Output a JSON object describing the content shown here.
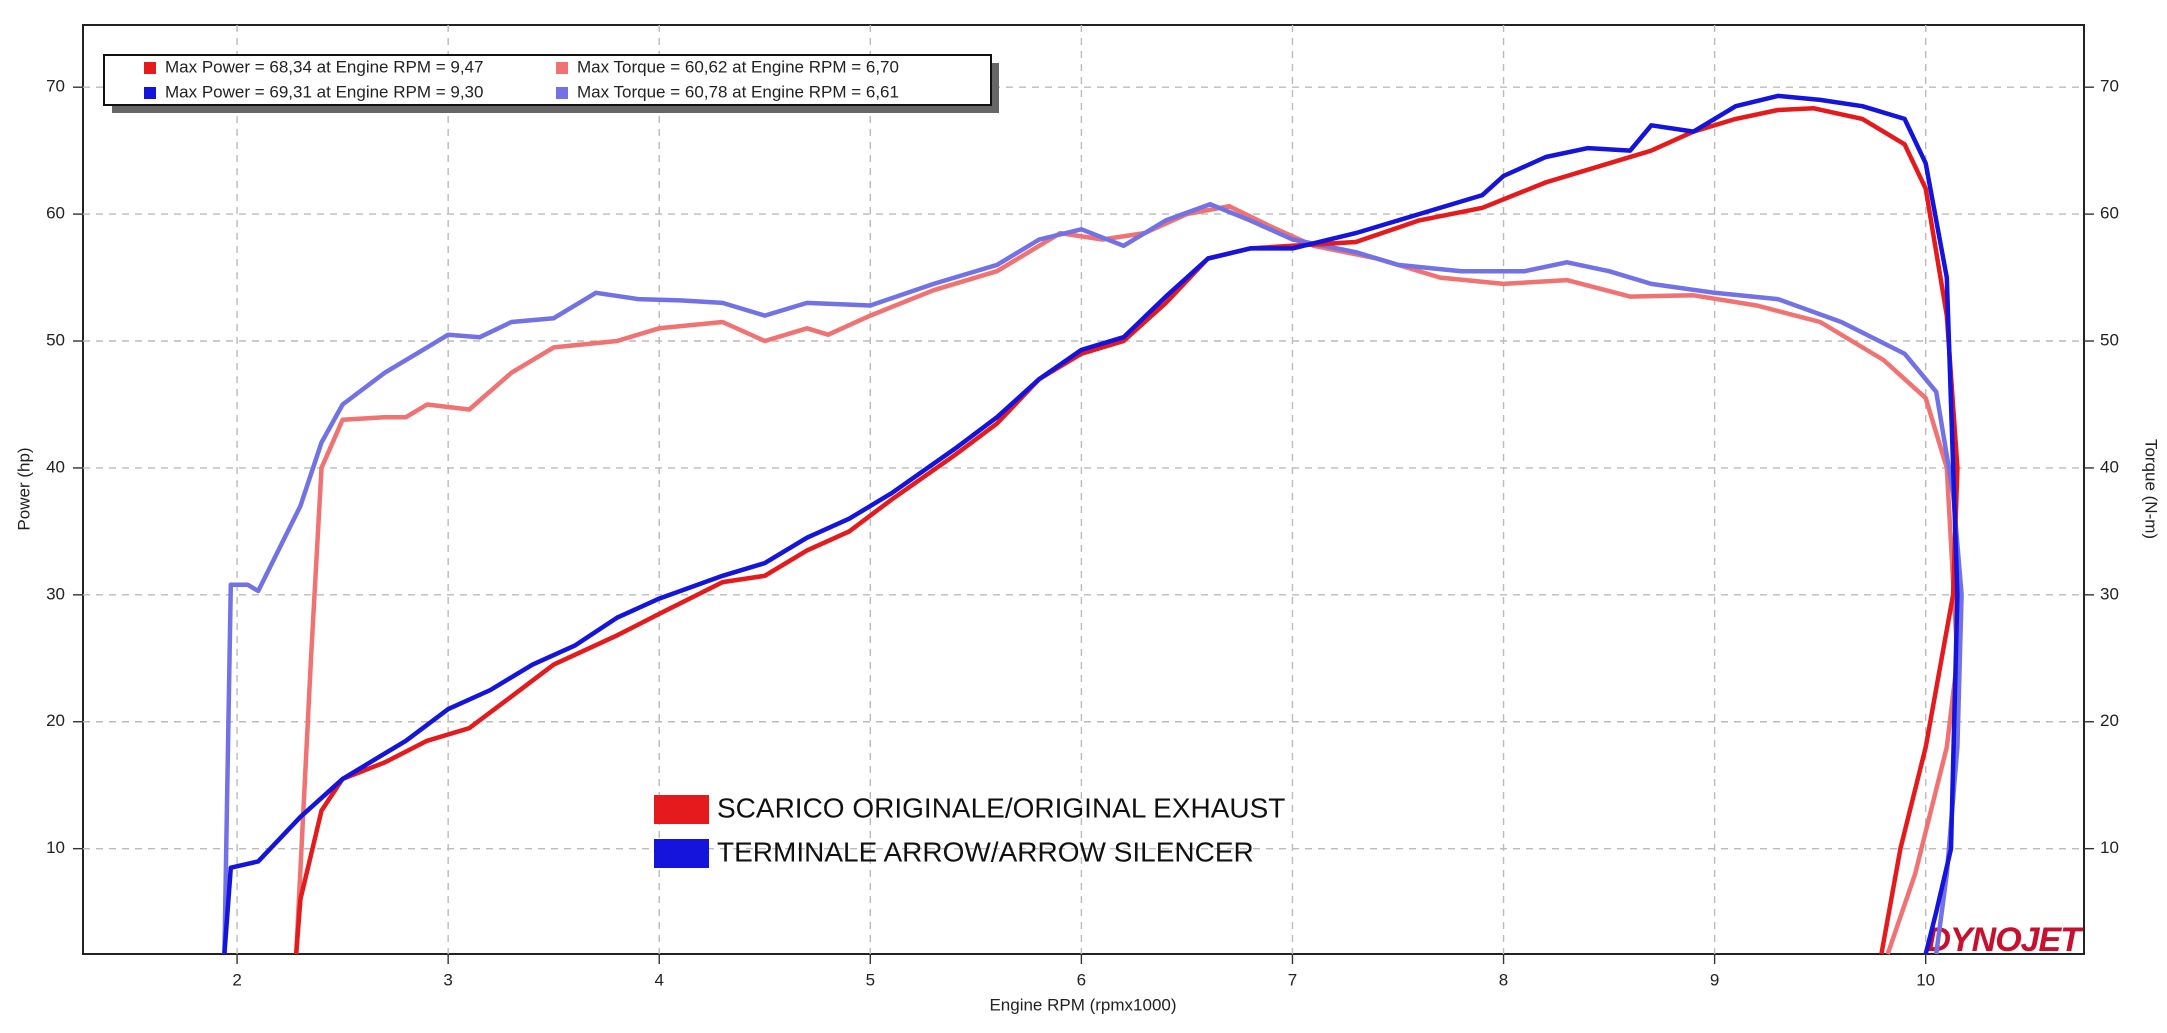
{
  "chart_data": {
    "type": "line",
    "xlabel": "Engine RPM (rpmx1000)",
    "ylabel": "Power (hp)",
    "y2label": "Torque (N-m)",
    "xlim": [
      1.27,
      10.75
    ],
    "ylim": [
      1.7,
      74.9
    ],
    "y2lim": [
      1.7,
      74.9
    ],
    "xticks": [
      2,
      3,
      4,
      5,
      6,
      7,
      8,
      9,
      10
    ],
    "yticks": [
      10,
      20,
      30,
      40,
      50,
      60,
      70
    ],
    "y2ticks": [
      10,
      20,
      30,
      40,
      50,
      60,
      70
    ],
    "grid": true,
    "legend": "upper left",
    "series": [
      {
        "name": "Max Power = 68,34 at Engine RPM = 9,47",
        "color": "#e41a1c",
        "x": [
          2.28,
          2.3,
          2.4,
          2.5,
          2.7,
          2.9,
          3.1,
          3.3,
          3.5,
          3.8,
          4.0,
          4.3,
          4.5,
          4.7,
          4.9,
          5.1,
          5.4,
          5.6,
          5.8,
          6.0,
          6.2,
          6.4,
          6.6,
          6.8,
          7.0,
          7.3,
          7.6,
          7.9,
          8.2,
          8.5,
          8.7,
          8.9,
          9.1,
          9.3,
          9.47,
          9.7,
          9.9,
          10.0,
          10.1,
          10.15,
          10.13,
          10.0,
          9.88,
          9.79
        ],
        "values": [
          1.7,
          6,
          13,
          15.5,
          16.8,
          18.5,
          19.5,
          22,
          24.5,
          26.8,
          28.5,
          31,
          31.5,
          33.5,
          35,
          37.5,
          41,
          43.5,
          47,
          49,
          50,
          53,
          56.5,
          57.3,
          57.5,
          57.8,
          59.5,
          60.5,
          62.5,
          64,
          65,
          66.5,
          67.5,
          68.2,
          68.34,
          67.5,
          65.5,
          62,
          52,
          40,
          30,
          18,
          10,
          1.7
        ]
      },
      {
        "name": "Max Torque = 60,62 at Engine RPM = 6,70",
        "color": "#f07272",
        "axis": "y2",
        "x": [
          2.28,
          2.35,
          2.4,
          2.5,
          2.7,
          2.8,
          2.9,
          3.1,
          3.3,
          3.5,
          3.8,
          4.0,
          4.3,
          4.5,
          4.7,
          4.8,
          5.0,
          5.3,
          5.6,
          5.9,
          6.1,
          6.3,
          6.5,
          6.7,
          6.9,
          7.1,
          7.4,
          7.7,
          8.0,
          8.3,
          8.6,
          8.9,
          9.2,
          9.5,
          9.8,
          10.0,
          10.1,
          10.15,
          10.1,
          9.95,
          9.82
        ],
        "values": [
          1.7,
          25,
          40,
          43.8,
          44,
          44,
          45,
          44.6,
          47.5,
          49.5,
          50,
          51,
          51.5,
          50,
          51,
          50.5,
          52,
          54,
          55.5,
          58.5,
          58,
          58.5,
          60,
          60.62,
          59,
          57.5,
          56.5,
          55,
          54.5,
          54.8,
          53.5,
          53.6,
          52.8,
          51.5,
          48.5,
          45.5,
          40,
          25,
          18,
          8,
          1.7
        ]
      },
      {
        "name": "Max Power = 69,31 at Engine RPM = 9,30",
        "color": "#1414dc",
        "x": [
          1.94,
          1.97,
          2.1,
          2.3,
          2.5,
          2.8,
          3.0,
          3.2,
          3.4,
          3.6,
          3.8,
          4.0,
          4.3,
          4.5,
          4.7,
          4.9,
          5.1,
          5.4,
          5.6,
          5.8,
          6.0,
          6.2,
          6.4,
          6.6,
          6.8,
          7.0,
          7.3,
          7.6,
          7.9,
          8.0,
          8.2,
          8.4,
          8.6,
          8.7,
          8.9,
          9.1,
          9.3,
          9.5,
          9.7,
          9.9,
          10.0,
          10.1,
          10.15,
          10.12,
          10.05,
          10.0
        ],
        "values": [
          1.7,
          8.5,
          9,
          12.5,
          15.5,
          18.5,
          21,
          22.5,
          24.5,
          26,
          28.2,
          29.7,
          31.5,
          32.5,
          34.5,
          36,
          38,
          41.5,
          44,
          47,
          49.3,
          50.3,
          53.5,
          56.5,
          57.3,
          57.3,
          58.5,
          60,
          61.5,
          63,
          64.5,
          65.2,
          65,
          67,
          66.5,
          68.5,
          69.31,
          69,
          68.5,
          67.5,
          64,
          55,
          30,
          10,
          5,
          1.7
        ]
      },
      {
        "name": "Max Torque = 60,78 at Engine RPM = 6,61",
        "color": "#7272e6",
        "axis": "y2",
        "x": [
          1.94,
          1.97,
          2.05,
          2.1,
          2.3,
          2.4,
          2.5,
          2.7,
          2.9,
          3.0,
          3.15,
          3.3,
          3.5,
          3.7,
          3.9,
          4.1,
          4.3,
          4.5,
          4.7,
          5.0,
          5.3,
          5.6,
          5.8,
          6.0,
          6.2,
          6.4,
          6.61,
          6.8,
          7.0,
          7.3,
          7.5,
          7.8,
          8.1,
          8.3,
          8.5,
          8.7,
          9.0,
          9.3,
          9.6,
          9.9,
          10.05,
          10.13,
          10.17,
          10.15,
          10.1,
          10.05
        ],
        "values": [
          1.7,
          30.8,
          30.8,
          30.3,
          37,
          42,
          45,
          47.5,
          49.5,
          50.5,
          50.3,
          51.5,
          51.8,
          53.8,
          53.3,
          53.2,
          53,
          52,
          53,
          52.8,
          54.5,
          56,
          58,
          58.8,
          57.5,
          59.5,
          60.78,
          59.5,
          58,
          57,
          56,
          55.5,
          55.5,
          56.2,
          55.5,
          54.5,
          53.8,
          53.3,
          51.5,
          49,
          46,
          38,
          30,
          18,
          8,
          1.7
        ]
      }
    ],
    "runs": [
      {
        "name": "SCARICO ORIGINALE/ORIGINAL EXHAUST",
        "color": "#e41a1c"
      },
      {
        "name": "TERMINALE ARROW/ARROW SILENCER",
        "color": "#1414dc"
      }
    ],
    "logo": "DYNOJET"
  }
}
